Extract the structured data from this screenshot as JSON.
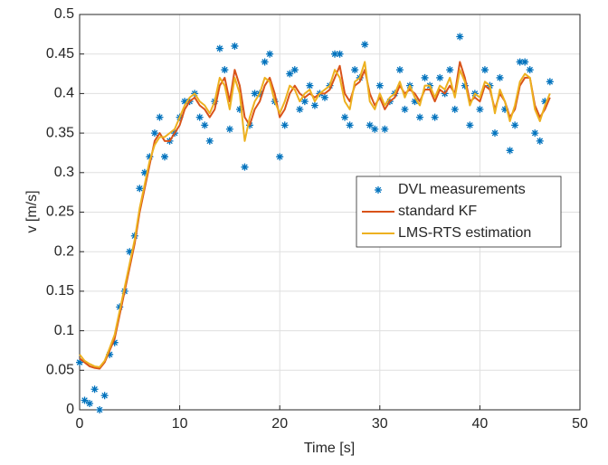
{
  "chart_data": {
    "type": "line",
    "x_label": "Time [s]",
    "y_label": "v [m/s]",
    "xlim": [
      0,
      50
    ],
    "ylim": [
      0,
      0.5
    ],
    "xticks": [
      0,
      10,
      20,
      30,
      40,
      50
    ],
    "yticks": [
      0,
      0.05,
      0.1,
      0.15,
      0.2,
      0.25,
      0.3,
      0.35,
      0.4,
      0.45,
      0.5
    ],
    "grid": true,
    "legend": "right",
    "x": [
      0,
      0.5,
      1,
      1.5,
      2,
      2.5,
      3,
      3.5,
      4,
      4.5,
      5,
      5.5,
      6,
      6.5,
      7,
      7.5,
      8,
      8.5,
      9,
      9.5,
      10,
      10.5,
      11,
      11.5,
      12,
      12.5,
      13,
      13.5,
      14,
      14.5,
      15,
      15.5,
      16,
      16.5,
      17,
      17.5,
      18,
      18.5,
      19,
      19.5,
      20,
      20.5,
      21,
      21.5,
      22,
      22.5,
      23,
      23.5,
      24,
      24.5,
      25,
      25.5,
      26,
      26.5,
      27,
      27.5,
      28,
      28.5,
      29,
      29.5,
      30,
      30.5,
      31,
      31.5,
      32,
      32.5,
      33,
      33.5,
      34,
      34.5,
      35,
      35.5,
      36,
      36.5,
      37,
      37.5,
      38,
      38.5,
      39,
      39.5,
      40,
      40.5,
      41,
      41.5,
      42,
      42.5,
      43,
      43.5,
      44,
      44.5,
      45,
      45.5,
      46,
      46.5,
      47
    ],
    "series": [
      {
        "name": "DVL measurements",
        "color": "#0072bd",
        "style": "marker",
        "values": [
          0.06,
          0.012,
          0.008,
          0.026,
          0.0,
          0.018,
          0.07,
          0.085,
          0.13,
          0.15,
          0.2,
          0.22,
          0.28,
          0.3,
          0.32,
          0.35,
          0.37,
          0.32,
          0.34,
          0.35,
          0.37,
          0.39,
          0.39,
          0.4,
          0.37,
          0.36,
          0.34,
          0.39,
          0.457,
          0.43,
          0.355,
          0.46,
          0.38,
          0.307,
          0.36,
          0.4,
          0.4,
          0.44,
          0.45,
          0.39,
          0.32,
          0.36,
          0.425,
          0.43,
          0.38,
          0.39,
          0.41,
          0.385,
          0.4,
          0.395,
          0.41,
          0.45,
          0.45,
          0.37,
          0.36,
          0.43,
          0.42,
          0.462,
          0.36,
          0.355,
          0.41,
          0.355,
          0.39,
          0.4,
          0.43,
          0.38,
          0.41,
          0.39,
          0.37,
          0.42,
          0.41,
          0.37,
          0.42,
          0.4,
          0.43,
          0.38,
          0.472,
          0.41,
          0.36,
          0.4,
          0.38,
          0.43,
          0.41,
          0.35,
          0.42,
          0.38,
          0.328,
          0.36,
          0.44,
          0.44,
          0.43,
          0.35,
          0.34,
          0.39,
          0.415
        ]
      },
      {
        "name": "standard KF",
        "color": "#d95319",
        "style": "line",
        "values": [
          0.065,
          0.06,
          0.055,
          0.053,
          0.052,
          0.06,
          0.075,
          0.09,
          0.12,
          0.15,
          0.18,
          0.21,
          0.25,
          0.28,
          0.31,
          0.34,
          0.35,
          0.34,
          0.34,
          0.35,
          0.36,
          0.38,
          0.39,
          0.395,
          0.385,
          0.38,
          0.37,
          0.38,
          0.41,
          0.42,
          0.39,
          0.43,
          0.41,
          0.37,
          0.36,
          0.38,
          0.39,
          0.41,
          0.42,
          0.4,
          0.37,
          0.38,
          0.4,
          0.41,
          0.4,
          0.395,
          0.4,
          0.395,
          0.4,
          0.4,
          0.405,
          0.42,
          0.435,
          0.4,
          0.39,
          0.41,
          0.415,
          0.43,
          0.4,
          0.385,
          0.395,
          0.38,
          0.39,
          0.395,
          0.41,
          0.4,
          0.405,
          0.4,
          0.39,
          0.405,
          0.405,
          0.39,
          0.405,
          0.4,
          0.41,
          0.4,
          0.44,
          0.42,
          0.39,
          0.395,
          0.39,
          0.41,
          0.405,
          0.38,
          0.4,
          0.39,
          0.37,
          0.38,
          0.41,
          0.42,
          0.42,
          0.385,
          0.37,
          0.38,
          0.395
        ]
      },
      {
        "name": "LMS-RTS estimation",
        "color": "#edb120",
        "style": "line",
        "values": [
          0.07,
          0.062,
          0.058,
          0.055,
          0.054,
          0.062,
          0.078,
          0.095,
          0.125,
          0.155,
          0.185,
          0.215,
          0.255,
          0.285,
          0.315,
          0.335,
          0.345,
          0.345,
          0.35,
          0.355,
          0.37,
          0.385,
          0.395,
          0.4,
          0.39,
          0.385,
          0.375,
          0.39,
          0.42,
          0.41,
          0.38,
          0.42,
          0.4,
          0.34,
          0.37,
          0.39,
          0.4,
          0.42,
          0.415,
          0.39,
          0.375,
          0.39,
          0.41,
          0.405,
          0.39,
          0.4,
          0.405,
          0.39,
          0.4,
          0.405,
          0.41,
          0.43,
          0.42,
          0.39,
          0.38,
          0.415,
          0.42,
          0.44,
          0.39,
          0.38,
          0.4,
          0.385,
          0.395,
          0.4,
          0.415,
          0.395,
          0.41,
          0.395,
          0.385,
          0.41,
          0.41,
          0.395,
          0.41,
          0.405,
          0.42,
          0.395,
          0.43,
          0.415,
          0.385,
          0.4,
          0.395,
          0.415,
          0.41,
          0.375,
          0.405,
          0.39,
          0.365,
          0.385,
          0.415,
          0.425,
          0.42,
          0.38,
          0.365,
          0.385,
          0.4
        ]
      }
    ]
  }
}
